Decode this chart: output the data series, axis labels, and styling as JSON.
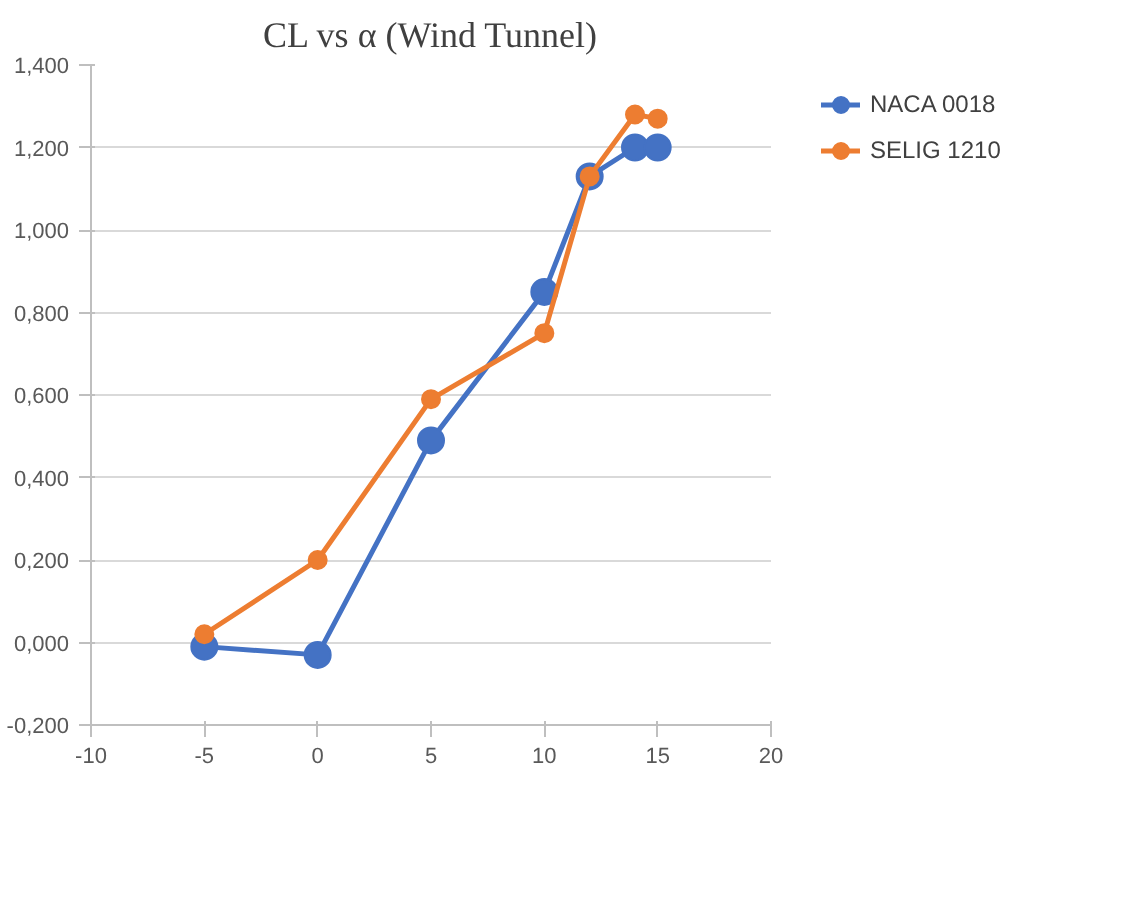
{
  "chart_data": {
    "type": "line",
    "title": "CL vs α (Wind Tunnel)",
    "series": [
      {
        "name": "NACA 0018",
        "color": "#4472c4",
        "x": [
          -5,
          0,
          5,
          10,
          12,
          14,
          15
        ],
        "values": [
          -0.01,
          -0.03,
          0.49,
          0.85,
          1.13,
          1.2,
          1.2
        ]
      },
      {
        "name": "SELIG 1210",
        "color": "#ed7d31",
        "x": [
          -5,
          0,
          5,
          10,
          12,
          14,
          15
        ],
        "values": [
          0.02,
          0.2,
          0.59,
          0.75,
          1.13,
          1.28,
          1.27
        ]
      }
    ],
    "xlim": [
      -10,
      20
    ],
    "xticks": [
      -10,
      -5,
      0,
      5,
      10,
      15,
      20
    ],
    "ylim": [
      -0.2,
      1.4
    ],
    "yticks": [
      {
        "value": -0.2,
        "label": "-0,200"
      },
      {
        "value": 0,
        "label": "0,000"
      },
      {
        "value": 0.2,
        "label": "0,200"
      },
      {
        "value": 0.4,
        "label": "0,400"
      },
      {
        "value": 0.6,
        "label": "0,600"
      },
      {
        "value": 0.8,
        "label": "0,800"
      },
      {
        "value": 1.0,
        "label": "1,000"
      },
      {
        "value": 1.2,
        "label": "1,200"
      },
      {
        "value": 1.4,
        "label": "1,400"
      }
    ],
    "grid": "y",
    "legend": "right",
    "marker": "circle",
    "line_style": "solid"
  }
}
